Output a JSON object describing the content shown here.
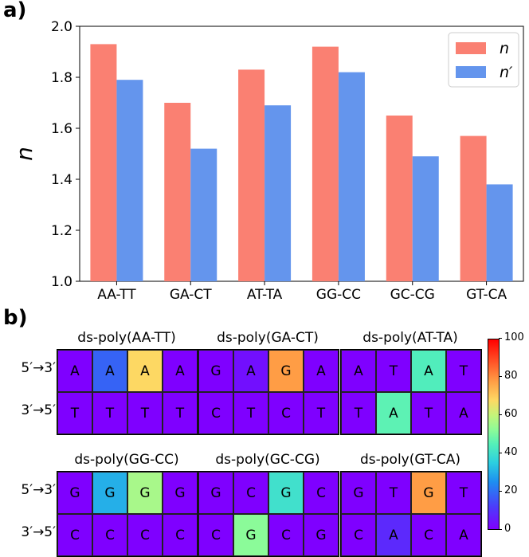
{
  "panel_a_label": "a)",
  "panel_b_label": "b)",
  "chart_data": {
    "type": "bar",
    "categories": [
      "AA-TT",
      "GA-CT",
      "AT-TA",
      "GG-CC",
      "GC-CG",
      "GT-CA"
    ],
    "series": [
      {
        "name": "n",
        "color": "#fa8072",
        "values": [
          1.93,
          1.7,
          1.83,
          1.92,
          1.65,
          1.57
        ]
      },
      {
        "name": "n′",
        "color": "#6495ed",
        "values": [
          1.79,
          1.52,
          1.69,
          1.82,
          1.49,
          1.38
        ]
      }
    ],
    "ylabel": "n",
    "xlabel": "",
    "ylim": [
      1.0,
      2.0
    ],
    "yticks": [
      "1.0",
      "1.2",
      "1.4",
      "1.6",
      "1.8",
      "2.0"
    ],
    "legend_position": "top-right"
  },
  "heatmaps": {
    "row_labels": [
      "5′→3′",
      "3′→5′"
    ],
    "colorbar": {
      "min": 0,
      "max": 100,
      "ticks": [
        "0",
        "20",
        "40",
        "60",
        "80",
        "100"
      ]
    },
    "panels": [
      {
        "title": "ds-poly(AA-TT)",
        "rows": [
          [
            {
              "base": "A",
              "value": 0
            },
            {
              "base": "A",
              "value": 18
            },
            {
              "base": "A",
              "value": 68
            },
            {
              "base": "A",
              "value": 0
            }
          ],
          [
            {
              "base": "T",
              "value": 0
            },
            {
              "base": "T",
              "value": 0
            },
            {
              "base": "T",
              "value": 0
            },
            {
              "base": "T",
              "value": 0
            }
          ]
        ]
      },
      {
        "title": "ds-poly(GA-CT)",
        "rows": [
          [
            {
              "base": "G",
              "value": 0
            },
            {
              "base": "A",
              "value": 3
            },
            {
              "base": "G",
              "value": 78
            },
            {
              "base": "A",
              "value": 0
            }
          ],
          [
            {
              "base": "C",
              "value": 0
            },
            {
              "base": "T",
              "value": 0
            },
            {
              "base": "C",
              "value": 0
            },
            {
              "base": "T",
              "value": 0
            }
          ]
        ]
      },
      {
        "title": "ds-poly(AT-TA)",
        "rows": [
          [
            {
              "base": "A",
              "value": 0
            },
            {
              "base": "T",
              "value": 0
            },
            {
              "base": "A",
              "value": 44
            },
            {
              "base": "T",
              "value": 0
            }
          ],
          [
            {
              "base": "T",
              "value": 0
            },
            {
              "base": "A",
              "value": 46
            },
            {
              "base": "T",
              "value": 0
            },
            {
              "base": "A",
              "value": 0
            }
          ]
        ]
      },
      {
        "title": "ds-poly(GG-CC)",
        "rows": [
          [
            {
              "base": "G",
              "value": 0
            },
            {
              "base": "G",
              "value": 30
            },
            {
              "base": "G",
              "value": 56
            },
            {
              "base": "G",
              "value": 0
            }
          ],
          [
            {
              "base": "C",
              "value": 0
            },
            {
              "base": "C",
              "value": 0
            },
            {
              "base": "C",
              "value": 0
            },
            {
              "base": "C",
              "value": 0
            }
          ]
        ]
      },
      {
        "title": "ds-poly(GC-CG)",
        "rows": [
          [
            {
              "base": "G",
              "value": 0
            },
            {
              "base": "C",
              "value": 0
            },
            {
              "base": "G",
              "value": 40
            },
            {
              "base": "C",
              "value": 0
            }
          ],
          [
            {
              "base": "C",
              "value": 0
            },
            {
              "base": "G",
              "value": 52
            },
            {
              "base": "C",
              "value": 0
            },
            {
              "base": "G",
              "value": 0
            }
          ]
        ]
      },
      {
        "title": "ds-poly(GT-CA)",
        "rows": [
          [
            {
              "base": "G",
              "value": 0
            },
            {
              "base": "T",
              "value": 0
            },
            {
              "base": "G",
              "value": 78
            },
            {
              "base": "T",
              "value": 0
            }
          ],
          [
            {
              "base": "C",
              "value": 0
            },
            {
              "base": "A",
              "value": 8
            },
            {
              "base": "C",
              "value": 0
            },
            {
              "base": "A",
              "value": 0
            }
          ]
        ]
      }
    ]
  }
}
